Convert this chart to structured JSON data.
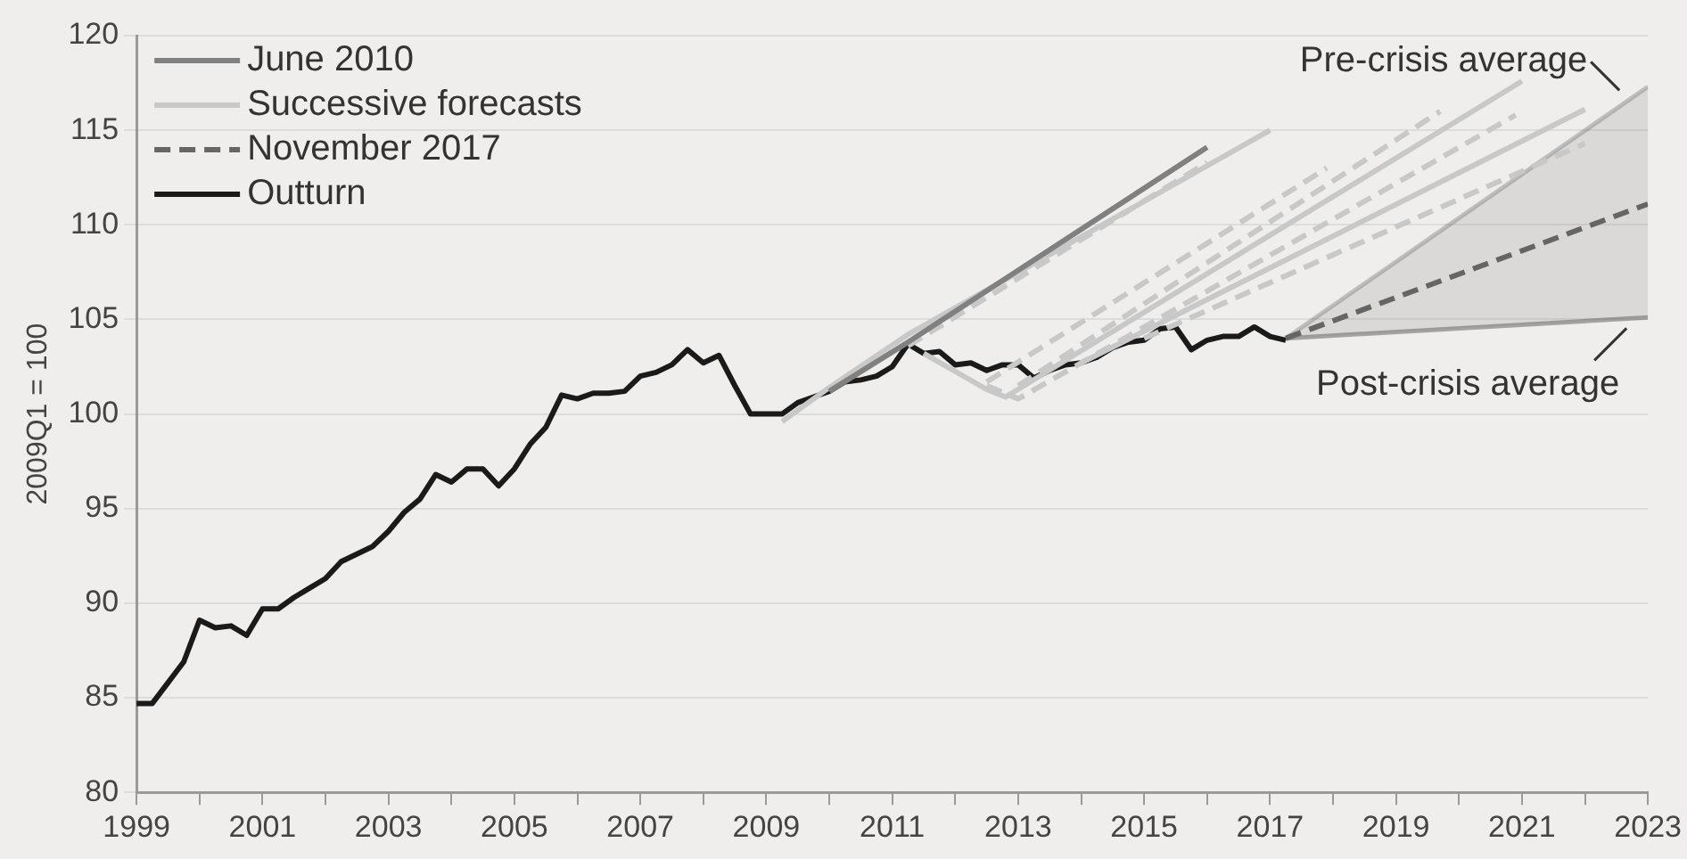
{
  "chart_data": {
    "type": "line",
    "ylabel": "2009Q1 = 100",
    "xlim": [
      1999,
      2023
    ],
    "ylim": [
      80,
      120
    ],
    "xticks": [
      1999,
      {
        "value": 2000,
        "label": null
      },
      2001,
      {
        "value": 2002,
        "label": null
      },
      2003,
      {
        "value": 2004,
        "label": null
      },
      2005,
      {
        "value": 2006,
        "label": null
      },
      2007,
      {
        "value": 2008,
        "label": null
      },
      2009,
      {
        "value": 2010,
        "label": null
      },
      2011,
      {
        "value": 2012,
        "label": null
      },
      2013,
      {
        "value": 2014,
        "label": null
      },
      2015,
      {
        "value": 2016,
        "label": null
      },
      2017,
      {
        "value": 2018,
        "label": null
      },
      2019,
      {
        "value": 2020,
        "label": null
      },
      2021,
      {
        "value": 2022,
        "label": null
      },
      2023
    ],
    "yticks": [
      80,
      85,
      90,
      95,
      100,
      105,
      110,
      115,
      120
    ],
    "grid": "y",
    "legend": "top left",
    "series": [
      {
        "name": "June 2010",
        "color": "#808080",
        "x": [
          2010.0,
          2011.25,
          2016.0
        ],
        "values": [
          101.2,
          103.8,
          114.1
        ]
      },
      {
        "name": "Successive forecasts",
        "color": "#c8c8c8",
        "x": [
          2009.25,
          2010.0,
          2011.25,
          2017.0
        ],
        "values": [
          99.6,
          101.4,
          104.2,
          115.0
        ]
      },
      {
        "color": "#c8c8c8",
        "line_style": "dashed",
        "x": [
          2011.25,
          2016.0
        ],
        "values": [
          103.6,
          113.3
        ]
      },
      {
        "color": "#c8c8c8",
        "x": [
          2011.5,
          2012.5,
          2012.8,
          2021.0
        ],
        "values": [
          103.2,
          101.3,
          100.9,
          117.6
        ]
      },
      {
        "color": "#c8c8c8",
        "line_style": "dashed",
        "x": [
          2012.5,
          2013.0,
          2020.9
        ],
        "values": [
          101.5,
          100.8,
          115.8
        ]
      },
      {
        "color": "#c8c8c8",
        "line_style": "dashed",
        "x": [
          2013.0,
          2019.7
        ],
        "values": [
          101.5,
          116.0
        ]
      },
      {
        "color": "#c8c8c8",
        "line_style": "dashed",
        "x": [
          2012.5,
          2017.9
        ],
        "values": [
          101.7,
          113.0
        ]
      },
      {
        "color": "#c8c8c8",
        "x": [
          2014.0,
          2022.0
        ],
        "values": [
          102.7,
          116.1
        ]
      },
      {
        "color": "#c8c8c8",
        "line_style": "dashed",
        "x": [
          2015.0,
          2022.0
        ],
        "values": [
          104.0,
          114.3
        ]
      },
      {
        "name": "November 2017",
        "color": "#666666",
        "line_style": "dashed",
        "x": [
          2017.25,
          2023
        ],
        "values": [
          104.0,
          111.1
        ],
        "lower": [
          104.0,
          105.1
        ],
        "upper": [
          104.0,
          117.3
        ]
      },
      {
        "name": "Outturn",
        "color": "#1a1a1a",
        "x": [
          1999.0,
          1999.25,
          1999.5,
          1999.75,
          2000.0,
          2000.25,
          2000.5,
          2000.75,
          2001.0,
          2001.25,
          2001.5,
          2001.75,
          2002.0,
          2002.25,
          2002.5,
          2002.75,
          2003.0,
          2003.25,
          2003.5,
          2003.75,
          2004.0,
          2004.25,
          2004.5,
          2004.75,
          2005.0,
          2005.25,
          2005.5,
          2005.75,
          2006.0,
          2006.25,
          2006.5,
          2006.75,
          2007.0,
          2007.25,
          2007.5,
          2007.75,
          2008.0,
          2008.25,
          2008.5,
          2008.75,
          2009.0,
          2009.25,
          2009.5,
          2009.75,
          2010.0,
          2010.25,
          2010.5,
          2010.75,
          2011.0,
          2011.25,
          2011.5,
          2011.75,
          2012.0,
          2012.25,
          2012.5,
          2012.75,
          2013.0,
          2013.25,
          2013.5,
          2013.75,
          2014.0,
          2014.25,
          2014.5,
          2014.75,
          2015.0,
          2015.25,
          2015.5,
          2015.75,
          2016.0,
          2016.25,
          2016.5,
          2016.75,
          2017.0,
          2017.25
        ],
        "values": [
          84.7,
          84.7,
          85.8,
          86.9,
          89.1,
          88.7,
          88.8,
          88.3,
          89.7,
          89.7,
          90.3,
          90.8,
          91.3,
          92.2,
          92.6,
          93.0,
          93.8,
          94.8,
          95.5,
          96.8,
          96.4,
          97.1,
          97.1,
          96.2,
          97.1,
          98.4,
          99.3,
          101.0,
          100.8,
          101.1,
          101.1,
          101.2,
          102.0,
          102.2,
          102.6,
          103.4,
          102.7,
          103.1,
          101.5,
          100.0,
          100.0,
          100.0,
          100.6,
          100.9,
          101.2,
          101.7,
          101.8,
          102.0,
          102.5,
          103.7,
          103.2,
          103.3,
          102.6,
          102.7,
          102.3,
          102.6,
          102.6,
          101.9,
          102.3,
          102.6,
          102.7,
          103.0,
          103.5,
          103.8,
          103.9,
          104.5,
          104.6,
          103.4,
          103.9,
          104.1,
          104.1,
          104.6,
          104.1,
          103.9
        ]
      }
    ],
    "annotations": [
      {
        "text": "Pre-crisis average",
        "x": 2023,
        "y": 117.3
      },
      {
        "text": "Post-crisis average",
        "x": 2023,
        "y": 105.1
      }
    ]
  }
}
